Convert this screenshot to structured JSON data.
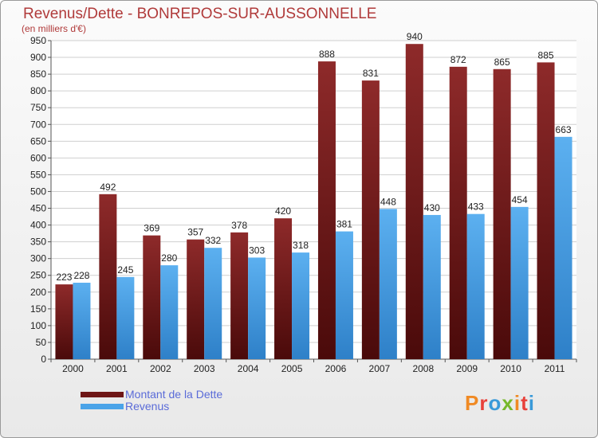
{
  "header": {
    "title": "Revenus/Dette - BONREPOS-SUR-AUSSONNELLE",
    "subtitle": "(en milliers d'€)"
  },
  "logo": {
    "text": "Proxiti",
    "colors": [
      "#f08a24",
      "#e8403a",
      "#3a9ad9",
      "#76b82a",
      "#f08a24",
      "#e8403a",
      "#3a9ad9"
    ]
  },
  "colors": {
    "dette": "#7a1f1f",
    "revenus": "#4aa3e8",
    "text_accent": "#b03a3a",
    "legend_text": "#5a6bd8"
  },
  "chart_data": {
    "type": "bar",
    "title": "Revenus/Dette - BONREPOS-SUR-AUSSONNELLE",
    "subtitle": "(en milliers d'€)",
    "categories": [
      "2000",
      "2001",
      "2002",
      "2003",
      "2004",
      "2005",
      "2006",
      "2007",
      "2008",
      "2009",
      "2010",
      "2011"
    ],
    "series": [
      {
        "name": "Montant de la Dette",
        "values": [
          223,
          492,
          369,
          357,
          378,
          420,
          888,
          831,
          940,
          872,
          865,
          885
        ]
      },
      {
        "name": "Revenus",
        "values": [
          228,
          245,
          280,
          332,
          303,
          318,
          381,
          448,
          430,
          433,
          454,
          663
        ]
      }
    ],
    "ylim": [
      0,
      950
    ],
    "yticks": [
      0,
      50,
      100,
      150,
      200,
      250,
      300,
      350,
      400,
      450,
      500,
      550,
      600,
      650,
      700,
      750,
      800,
      850,
      900,
      950
    ],
    "grid": true,
    "legend": "bottom-left"
  }
}
